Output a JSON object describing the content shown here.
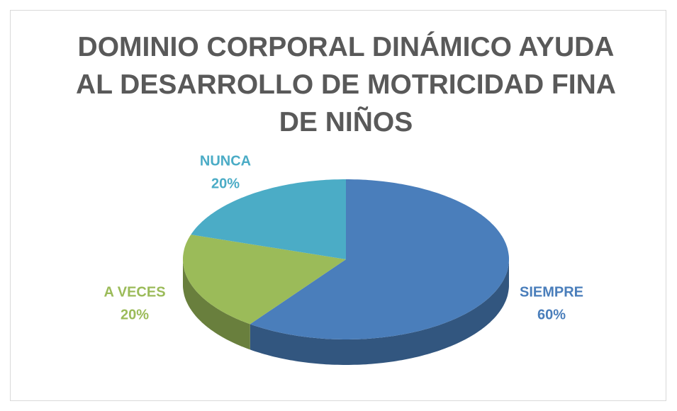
{
  "chart_data": {
    "type": "pie3d",
    "title": "DOMINIO CORPORAL DINÁMICO AYUDA AL DESARROLLO DE MOTRICIDAD FINA DE NIÑOS",
    "categories": [
      "SIEMPRE",
      "A VECES",
      "NUNCA"
    ],
    "values": [
      60,
      20,
      20
    ],
    "value_labels": [
      "60%",
      "20%",
      "20%"
    ],
    "colors": [
      "#4a7ebb",
      "#9bbb59",
      "#4bacc6"
    ]
  }
}
